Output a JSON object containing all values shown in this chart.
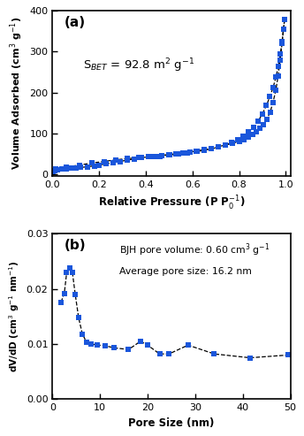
{
  "panel_a": {
    "label": "(a)",
    "annotation": "S$_{BET}$ = 92.8 m$^{2}$ g$^{-1}$",
    "xlabel": "Relative Pressure (P P$_0^{-1}$)",
    "ylabel": "Volume Adsorbed (cm$^3$ g$^{-1}$)",
    "xlim": [
      0.0,
      1.02
    ],
    "ylim": [
      -5,
      400
    ],
    "yticks": [
      0,
      100,
      200,
      300,
      400
    ],
    "xticks": [
      0.0,
      0.2,
      0.4,
      0.6,
      0.8,
      1.0
    ],
    "adsorption_x": [
      0.004,
      0.01,
      0.02,
      0.04,
      0.06,
      0.08,
      0.1,
      0.12,
      0.15,
      0.18,
      0.2,
      0.23,
      0.26,
      0.29,
      0.32,
      0.35,
      0.38,
      0.41,
      0.44,
      0.47,
      0.5,
      0.53,
      0.56,
      0.59,
      0.62,
      0.65,
      0.68,
      0.71,
      0.74,
      0.77,
      0.8,
      0.82,
      0.84,
      0.86,
      0.875,
      0.89,
      0.905,
      0.92,
      0.933,
      0.945,
      0.957,
      0.967,
      0.976,
      0.984,
      0.99,
      0.995
    ],
    "adsorption_y": [
      7,
      9,
      10,
      12,
      13,
      14,
      15,
      16,
      18,
      20,
      22,
      25,
      28,
      31,
      34,
      37,
      40,
      42,
      44,
      46,
      48,
      50,
      52,
      54,
      57,
      60,
      63,
      67,
      71,
      75,
      80,
      85,
      90,
      97,
      104,
      113,
      122,
      135,
      152,
      175,
      205,
      240,
      280,
      320,
      355,
      380
    ],
    "desorption_x": [
      0.995,
      0.99,
      0.984,
      0.977,
      0.968,
      0.958,
      0.946,
      0.932,
      0.917,
      0.9,
      0.882,
      0.862,
      0.84,
      0.817,
      0.793,
      0.767,
      0.74,
      0.712,
      0.682,
      0.65,
      0.616,
      0.58,
      0.542,
      0.502,
      0.46,
      0.416,
      0.37,
      0.322,
      0.273,
      0.222,
      0.169,
      0.115,
      0.058,
      0.015
    ],
    "desorption_y": [
      380,
      355,
      325,
      295,
      265,
      238,
      213,
      190,
      168,
      148,
      130,
      115,
      103,
      93,
      84,
      77,
      71,
      66,
      62,
      58,
      55,
      52,
      49,
      47,
      44,
      42,
      40,
      38,
      35,
      31,
      27,
      22,
      17,
      12
    ],
    "line_color": "black",
    "marker_color": "#1a56db",
    "marker": "s",
    "markersize": 4.5,
    "linewidth": 0.9
  },
  "panel_b": {
    "label": "(b)",
    "annotation_line1": "BJH pore volume: 0.60 cm$^3$ g$^{-1}$",
    "annotation_line2": "Average pore size: 16.2 nm",
    "xlabel": "Pore Size (nm)",
    "ylabel": "dV/dD (cm$^3$ g$^{-1}$ nm$^{-1}$)",
    "xlim": [
      0,
      50
    ],
    "ylim": [
      0.0,
      0.03
    ],
    "yticks": [
      0.0,
      0.01,
      0.02,
      0.03
    ],
    "xticks": [
      0,
      10,
      20,
      30,
      40,
      50
    ],
    "pore_x": [
      1.8,
      2.5,
      3.0,
      3.6,
      4.2,
      4.8,
      5.5,
      6.3,
      7.2,
      8.2,
      9.5,
      11.0,
      13.0,
      16.0,
      18.5,
      20.0,
      22.5,
      24.5,
      28.5,
      34.0,
      41.5,
      49.5
    ],
    "pore_y": [
      0.0176,
      0.0192,
      0.023,
      0.0238,
      0.023,
      0.019,
      0.0148,
      0.0118,
      0.0103,
      0.01,
      0.0098,
      0.0097,
      0.0093,
      0.009,
      0.0105,
      0.0098,
      0.0082,
      0.0082,
      0.0098,
      0.0082,
      0.0075,
      0.008
    ],
    "line_color": "black",
    "marker_color": "#1a56db",
    "marker": "s",
    "markersize": 4.5,
    "linewidth": 0.9,
    "linestyle": "--"
  },
  "figure_bg": "white",
  "border_color": "black"
}
